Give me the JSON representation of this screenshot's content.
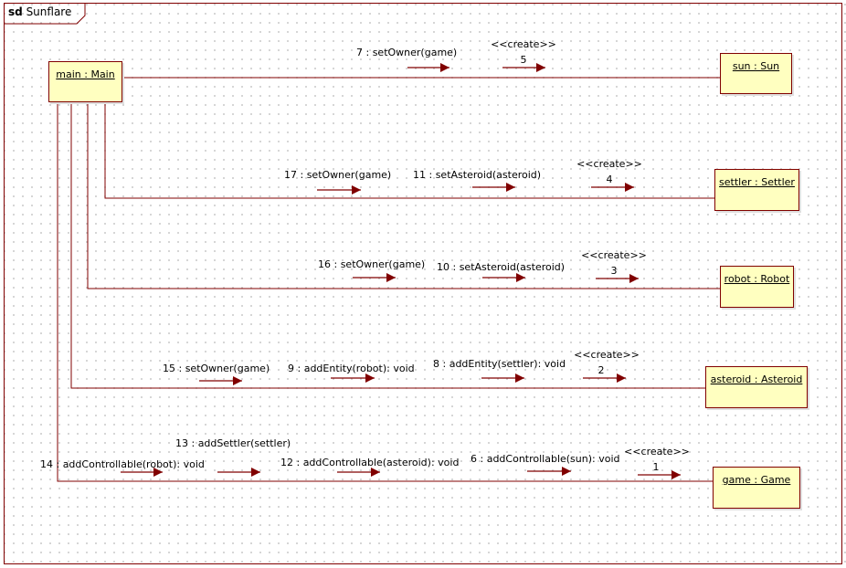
{
  "frame": {
    "keyword": "sd",
    "name": "Sunflare"
  },
  "colors": {
    "line": "#800000",
    "object_fill": "#ffffc0"
  },
  "objects": [
    {
      "id": "main",
      "label": "main : Main"
    },
    {
      "id": "sun",
      "label": "sun : Sun"
    },
    {
      "id": "settler",
      "label": "settler : Settler"
    },
    {
      "id": "robot",
      "label": "robot : Robot"
    },
    {
      "id": "asteroid",
      "label": "asteroid : Asteroid"
    },
    {
      "id": "game",
      "label": "game : Game"
    }
  ],
  "messages": {
    "m7": "7 : setOwner(game)",
    "m5_stereo": "<<create>>",
    "m5_num": "5",
    "m17": "17 : setOwner(game)",
    "m11": "11 : setAsteroid(asteroid)",
    "m4_stereo": "<<create>>",
    "m4_num": "4",
    "m16": "16 : setOwner(game)",
    "m10": "10 : setAsteroid(asteroid)",
    "m3_stereo": "<<create>>",
    "m3_num": "3",
    "m15": "15 : setOwner(game)",
    "m9": "9 : addEntity(robot): void",
    "m8": "8 : addEntity(settler): void",
    "m2_stereo": "<<create>>",
    "m2_num": "2",
    "m13": "13 : addSettler(settler)",
    "m14": "14 : addControllable(robot): void",
    "m12": "12 : addControllable(asteroid): void",
    "m6": "6 : addControllable(sun): void",
    "m1_stereo": "<<create>>",
    "m1_num": "1"
  }
}
